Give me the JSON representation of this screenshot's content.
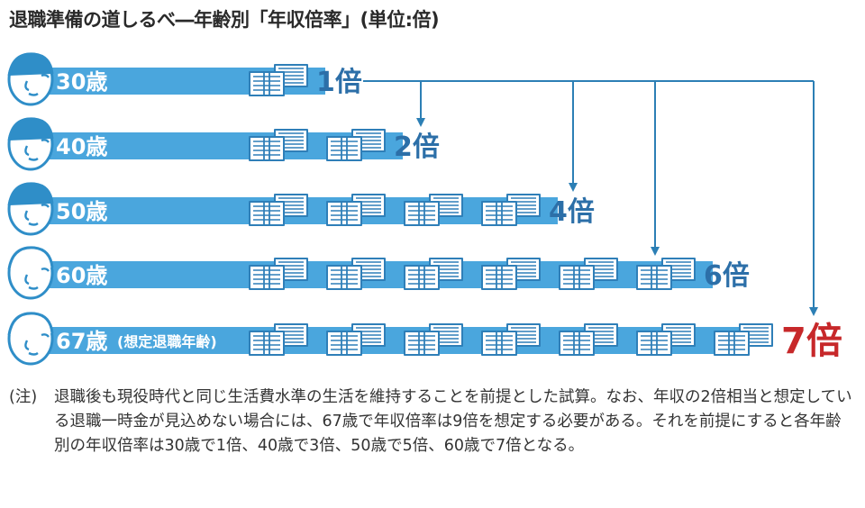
{
  "title": "退職準備の道しるべ―年齢別「年収倍率」(単位:倍)",
  "colors": {
    "bar": "#4aa6dd",
    "arrow": "#2c7fb5",
    "face_stroke": "#2f8ec8",
    "face_fill": "#ffffff",
    "money_stroke": "#2f7fb8",
    "multiple_text": "#2c6fa8",
    "final_text": "#c7282a"
  },
  "chart_data": {
    "type": "bar",
    "title": "退職準備の道しるべ―年齢別「年収倍率」(単位:倍)",
    "categories": [
      "30歳",
      "40歳",
      "50歳",
      "60歳",
      "67歳"
    ],
    "category_sublabels": [
      "",
      "",
      "",
      "",
      "(想定退職年齢)"
    ],
    "values": [
      1,
      2,
      4,
      6,
      7
    ],
    "value_labels": [
      "1倍",
      "2倍",
      "4倍",
      "6倍",
      "7倍"
    ],
    "unit": "倍",
    "icon": "stack-of-banknotes-icon",
    "arrows_from": "1倍",
    "arrows_to": [
      "2倍",
      "4倍",
      "6倍",
      "7倍"
    ]
  },
  "note": {
    "prefix": "(注)",
    "text": "退職後も現役時代と同じ生活費水準の生活を維持することを前提とした試算。なお、年収の2倍相当と想定している退職一時金が見込めない場合には、67歳で年収倍率は9倍を想定する必要がある。それを前提にすると各年齢別の年収倍率は30歳で1倍、40歳で3倍、50歳で5倍、60歳で7倍となる。"
  }
}
